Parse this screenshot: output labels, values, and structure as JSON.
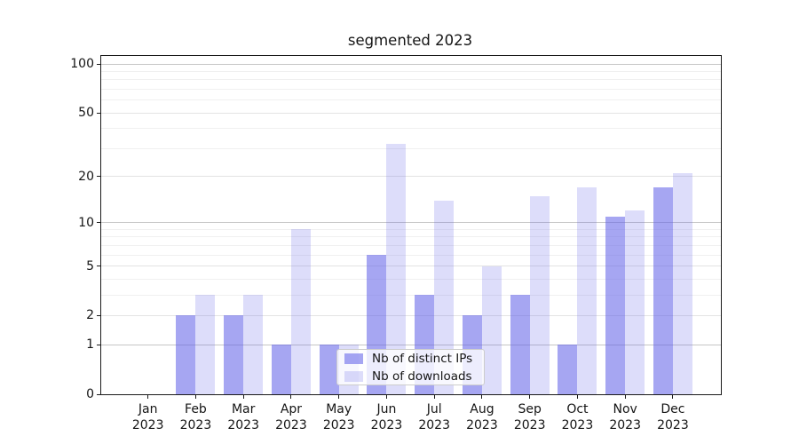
{
  "title": "segmented 2023",
  "chart_data": {
    "type": "bar",
    "title": "segmented 2023",
    "categories": [
      "Jan",
      "Feb",
      "Mar",
      "Apr",
      "May",
      "Jun",
      "Jul",
      "Aug",
      "Sep",
      "Oct",
      "Nov",
      "Dec"
    ],
    "category_year": "2023",
    "series": [
      {
        "name": "Nb of distinct IPs",
        "color": "rgba(98,98,232,0.57)",
        "values": [
          0,
          2,
          2,
          1,
          1,
          6,
          3,
          2,
          3,
          1,
          11,
          17
        ]
      },
      {
        "name": "Nb of downloads",
        "color": "rgba(98,98,232,0.22)",
        "values": [
          0,
          3,
          3,
          9,
          1,
          32,
          14,
          5,
          15,
          17,
          12,
          21
        ]
      }
    ],
    "xlabel": "",
    "ylabel": "",
    "y_ticks": [
      0,
      1,
      2,
      5,
      10,
      20,
      50,
      100
    ],
    "y_scale": "log1p",
    "ylim": [
      0,
      112
    ],
    "grid": "on",
    "legend_position": "lower center"
  }
}
